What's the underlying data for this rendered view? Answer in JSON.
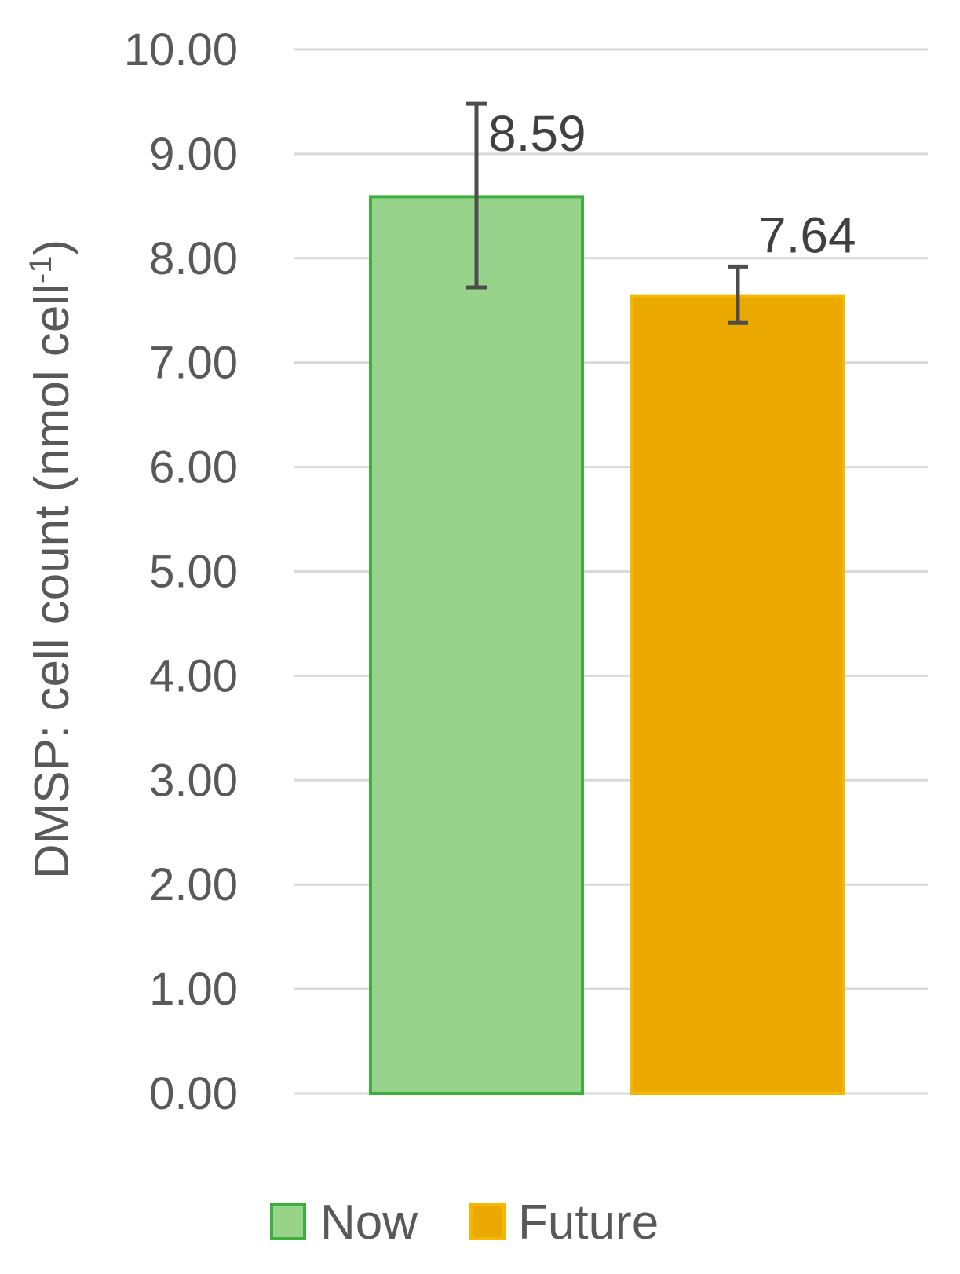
{
  "chart_data": {
    "type": "bar",
    "title": "",
    "xlabel": "",
    "ylabel": "DMSP: cell count (nmol cell",
    "ylabel_superscript": "-1",
    "ylabel_suffix": ")",
    "ylim": [
      0,
      10
    ],
    "yticks": [
      "0.00",
      "1.00",
      "2.00",
      "3.00",
      "4.00",
      "5.00",
      "6.00",
      "7.00",
      "8.00",
      "9.00",
      "10.00"
    ],
    "grid": true,
    "legend_position": "bottom",
    "series": [
      {
        "name": "Now",
        "value": 8.59,
        "label": "8.59",
        "error_low": 7.72,
        "error_high": 9.48,
        "fill": "#97d38b",
        "stroke": "#3daf3d"
      },
      {
        "name": "Future",
        "value": 7.64,
        "label": "7.64",
        "error_low": 7.38,
        "error_high": 7.92,
        "fill": "#eba900",
        "stroke": "#f5b800"
      }
    ]
  }
}
